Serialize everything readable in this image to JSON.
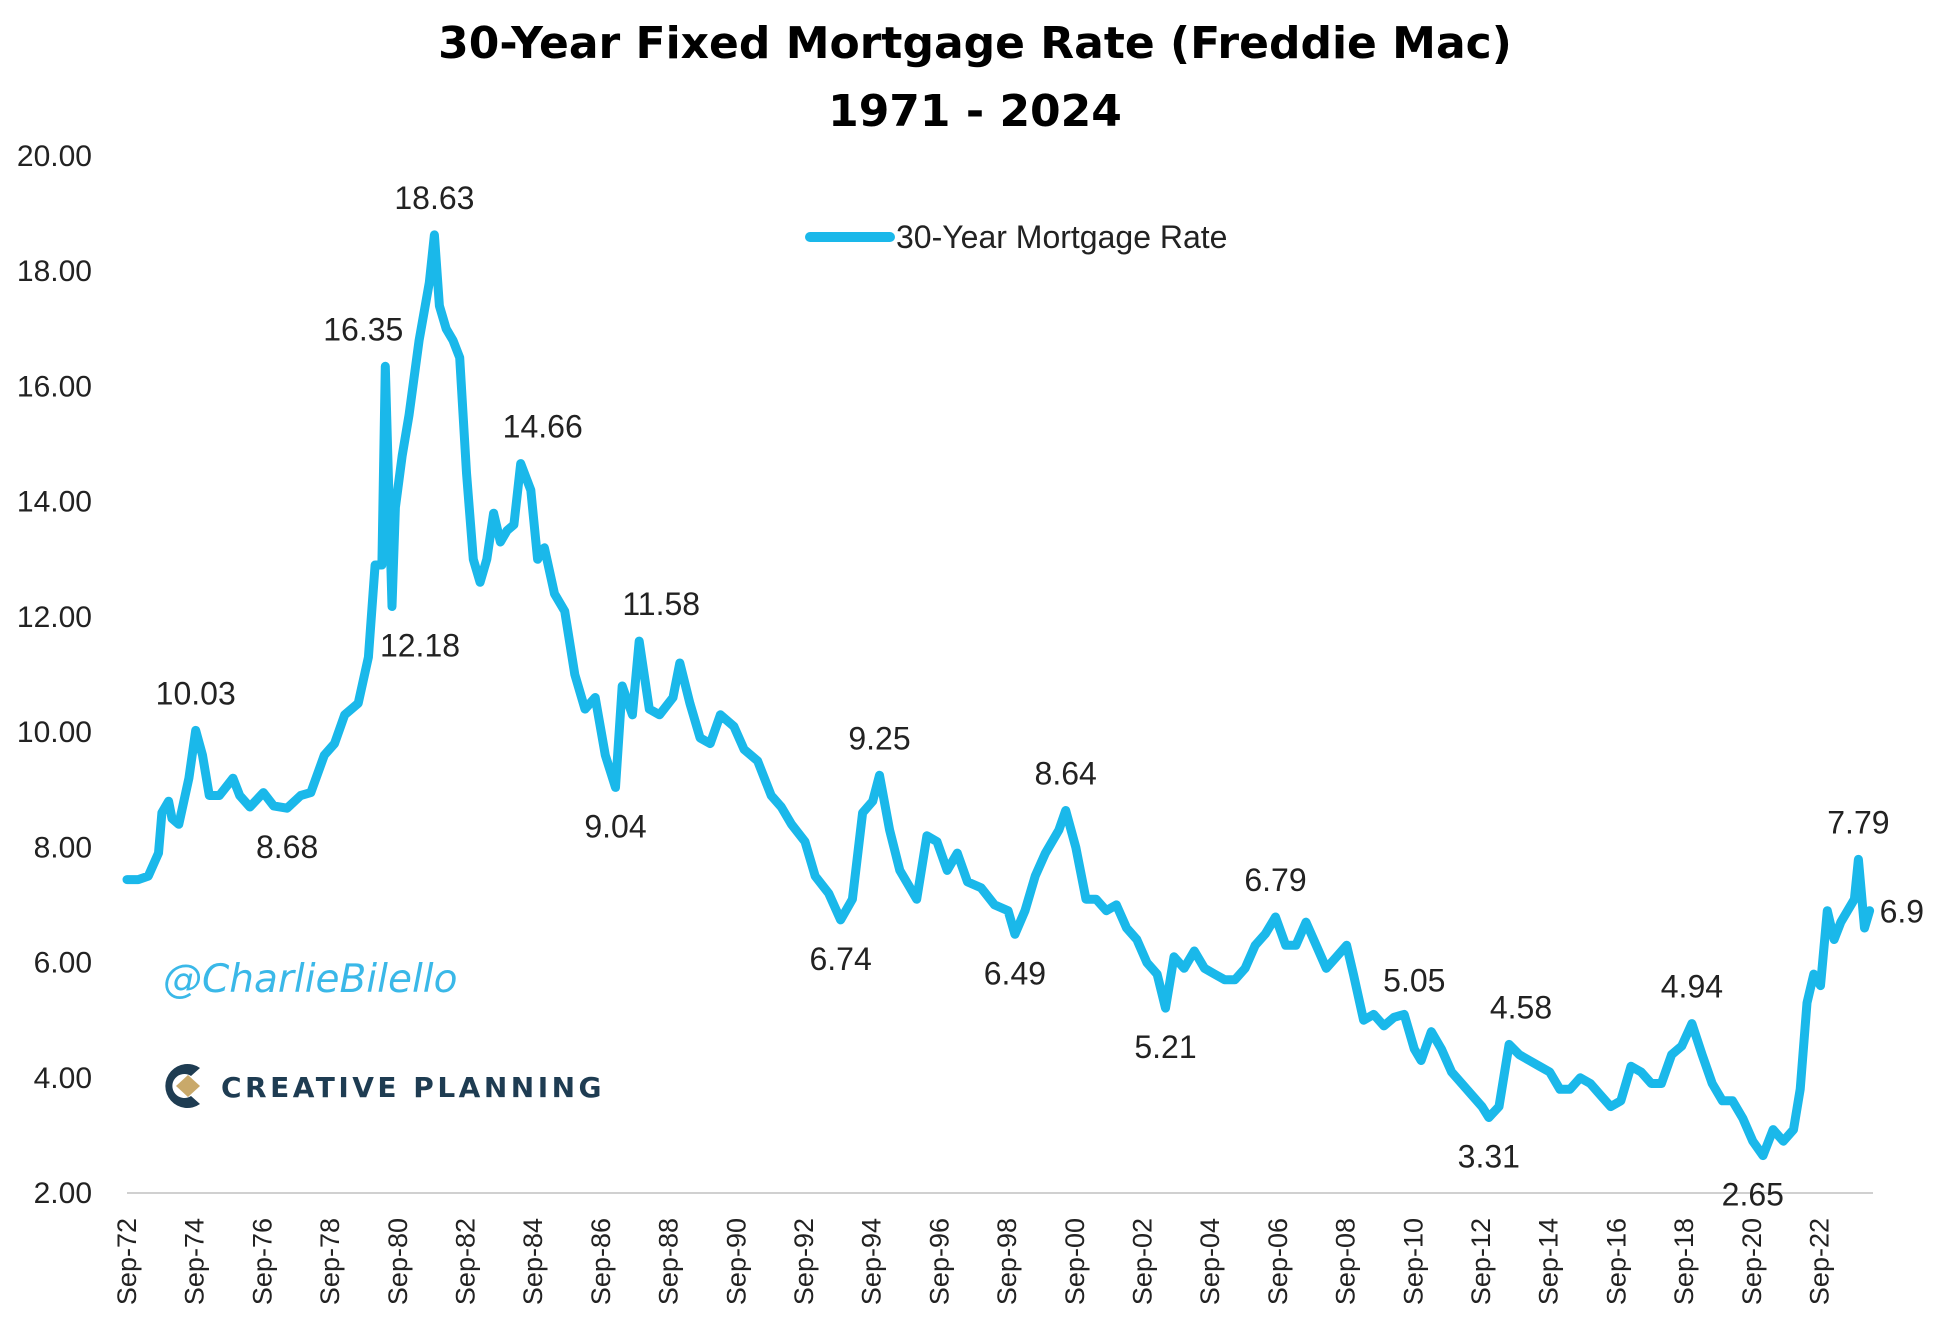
{
  "brand": {
    "watermark": "@CharlieBilello",
    "logo_text": "CREATIVE PLANNING",
    "logo_color": "#1e3c52",
    "logo_accent": "#c9a96a"
  },
  "chart_data": {
    "type": "line",
    "title": "30-Year Fixed  Mortgage Rate (Freddie Mac)",
    "subtitle": "1971 - 2024",
    "legend": {
      "label": "30-Year Mortgage Rate",
      "placement": "top-center"
    },
    "line_color": "#1ab8ea",
    "grid": false,
    "ylim": [
      2,
      20
    ],
    "yticks": [
      "2.00",
      "4.00",
      "6.00",
      "8.00",
      "10.00",
      "12.00",
      "14.00",
      "16.00",
      "18.00",
      "20.00"
    ],
    "xlim": [
      1972.67,
      2024.25
    ],
    "xticks": [
      "Sep-72",
      "Sep-74",
      "Sep-76",
      "Sep-78",
      "Sep-80",
      "Sep-82",
      "Sep-84",
      "Sep-86",
      "Sep-88",
      "Sep-90",
      "Sep-92",
      "Sep-94",
      "Sep-96",
      "Sep-98",
      "Sep-00",
      "Sep-02",
      "Sep-04",
      "Sep-06",
      "Sep-08",
      "Sep-10",
      "Sep-12",
      "Sep-14",
      "Sep-16",
      "Sep-18",
      "Sep-20",
      "Sep-22"
    ],
    "series": [
      {
        "name": "30-Year Mortgage Rate",
        "x": [
          1972.67,
          1973.0,
          1973.3,
          1973.6,
          1973.7,
          1973.9,
          1974.0,
          1974.2,
          1974.5,
          1974.7,
          1974.9,
          1975.1,
          1975.4,
          1975.8,
          1976.0,
          1976.3,
          1976.7,
          1977.0,
          1977.4,
          1977.8,
          1978.1,
          1978.5,
          1978.8,
          1979.1,
          1979.5,
          1979.8,
          1980.0,
          1980.2,
          1980.3,
          1980.5,
          1980.6,
          1980.8,
          1981.0,
          1981.3,
          1981.6,
          1981.75,
          1981.9,
          1982.1,
          1982.3,
          1982.5,
          1982.7,
          1982.9,
          1983.1,
          1983.3,
          1983.5,
          1983.7,
          1983.9,
          1984.1,
          1984.3,
          1984.6,
          1984.8,
          1985.0,
          1985.3,
          1985.6,
          1985.9,
          1986.2,
          1986.5,
          1986.8,
          1987.1,
          1987.3,
          1987.6,
          1987.8,
          1988.1,
          1988.4,
          1988.8,
          1989.0,
          1989.3,
          1989.6,
          1989.9,
          1990.2,
          1990.6,
          1990.9,
          1991.3,
          1991.7,
          1992.0,
          1992.3,
          1992.7,
          1993.0,
          1993.4,
          1993.75,
          1994.1,
          1994.4,
          1994.7,
          1994.9,
          1995.2,
          1995.5,
          1995.8,
          1996.0,
          1996.3,
          1996.6,
          1996.9,
          1997.2,
          1997.5,
          1997.9,
          1998.3,
          1998.7,
          1998.9,
          1999.2,
          1999.5,
          1999.8,
          2000.2,
          2000.4,
          2000.7,
          2001.0,
          2001.3,
          2001.6,
          2001.9,
          2002.2,
          2002.5,
          2002.8,
          2003.1,
          2003.35,
          2003.6,
          2003.9,
          2004.2,
          2004.5,
          2004.8,
          2005.1,
          2005.4,
          2005.7,
          2006.0,
          2006.3,
          2006.6,
          2006.9,
          2007.2,
          2007.5,
          2007.8,
          2008.1,
          2008.4,
          2008.7,
          2008.9,
          2009.2,
          2009.5,
          2009.8,
          2010.1,
          2010.4,
          2010.7,
          2010.9,
          2011.2,
          2011.5,
          2011.8,
          2012.1,
          2012.4,
          2012.7,
          2012.9,
          2013.2,
          2013.5,
          2013.8,
          2014.1,
          2014.4,
          2014.7,
          2015.0,
          2015.3,
          2015.6,
          2015.9,
          2016.2,
          2016.5,
          2016.8,
          2017.1,
          2017.4,
          2017.7,
          2018.0,
          2018.3,
          2018.6,
          2018.9,
          2019.2,
          2019.5,
          2019.8,
          2020.1,
          2020.4,
          2020.7,
          2021.0,
          2021.3,
          2021.6,
          2021.9,
          2022.1,
          2022.3,
          2022.5,
          2022.7,
          2022.9,
          2023.1,
          2023.3,
          2023.5,
          2023.7,
          2023.82,
          2024.0,
          2024.15
        ],
        "y": [
          7.44,
          7.44,
          7.5,
          7.9,
          8.6,
          8.8,
          8.5,
          8.4,
          9.2,
          10.03,
          9.6,
          8.9,
          8.9,
          9.2,
          8.9,
          8.7,
          8.95,
          8.72,
          8.68,
          8.9,
          8.95,
          9.6,
          9.8,
          10.3,
          10.5,
          11.3,
          12.9,
          12.9,
          16.35,
          12.18,
          13.9,
          14.8,
          15.5,
          16.8,
          17.8,
          18.63,
          17.4,
          17.0,
          16.8,
          16.5,
          14.5,
          13.0,
          12.6,
          13.0,
          13.8,
          13.3,
          13.5,
          13.6,
          14.66,
          14.2,
          13.0,
          13.2,
          12.4,
          12.1,
          11.0,
          10.4,
          10.6,
          9.6,
          9.04,
          10.8,
          10.3,
          11.58,
          10.4,
          10.3,
          10.6,
          11.2,
          10.5,
          9.9,
          9.8,
          10.3,
          10.1,
          9.7,
          9.5,
          8.9,
          8.7,
          8.4,
          8.1,
          7.5,
          7.2,
          6.74,
          7.1,
          8.6,
          8.8,
          9.25,
          8.3,
          7.6,
          7.3,
          7.1,
          8.2,
          8.1,
          7.6,
          7.9,
          7.4,
          7.3,
          7.0,
          6.9,
          6.49,
          6.9,
          7.5,
          7.9,
          8.3,
          8.64,
          8.0,
          7.1,
          7.1,
          6.9,
          7.0,
          6.6,
          6.4,
          6.0,
          5.8,
          5.21,
          6.1,
          5.9,
          6.2,
          5.9,
          5.8,
          5.7,
          5.7,
          5.9,
          6.3,
          6.5,
          6.79,
          6.3,
          6.3,
          6.7,
          6.3,
          5.9,
          6.1,
          6.3,
          5.8,
          5.0,
          5.1,
          4.9,
          5.05,
          5.1,
          4.5,
          4.3,
          4.8,
          4.5,
          4.1,
          3.9,
          3.7,
          3.5,
          3.31,
          3.5,
          4.58,
          4.4,
          4.3,
          4.2,
          4.1,
          3.8,
          3.8,
          4.0,
          3.9,
          3.7,
          3.5,
          3.6,
          4.2,
          4.1,
          3.9,
          3.9,
          4.4,
          4.55,
          4.94,
          4.4,
          3.9,
          3.6,
          3.6,
          3.3,
          2.9,
          2.65,
          3.1,
          2.9,
          3.1,
          3.8,
          5.3,
          5.8,
          5.6,
          6.9,
          6.4,
          6.7,
          6.9,
          7.1,
          7.79,
          6.6,
          6.9
        ]
      }
    ],
    "annotations": [
      {
        "x": 1974.7,
        "y": 10.03,
        "text": "10.03",
        "position": "above"
      },
      {
        "x": 1977.4,
        "y": 8.68,
        "text": "8.68",
        "position": "below"
      },
      {
        "x": 1980.3,
        "y": 16.35,
        "text": "16.35",
        "position": "above-left"
      },
      {
        "x": 1980.5,
        "y": 12.18,
        "text": "12.18",
        "position": "below-right"
      },
      {
        "x": 1981.75,
        "y": 18.63,
        "text": "18.63",
        "position": "above"
      },
      {
        "x": 1984.3,
        "y": 14.66,
        "text": "14.66",
        "position": "above-right"
      },
      {
        "x": 1987.1,
        "y": 9.04,
        "text": "9.04",
        "position": "below"
      },
      {
        "x": 1987.8,
        "y": 11.58,
        "text": "11.58",
        "position": "above-right"
      },
      {
        "x": 1993.75,
        "y": 6.74,
        "text": "6.74",
        "position": "below"
      },
      {
        "x": 1994.9,
        "y": 9.25,
        "text": "9.25",
        "position": "above"
      },
      {
        "x": 1998.9,
        "y": 6.49,
        "text": "6.49",
        "position": "below"
      },
      {
        "x": 2000.4,
        "y": 8.64,
        "text": "8.64",
        "position": "above"
      },
      {
        "x": 2003.35,
        "y": 5.21,
        "text": "5.21",
        "position": "below"
      },
      {
        "x": 2006.6,
        "y": 6.79,
        "text": "6.79",
        "position": "above"
      },
      {
        "x": 2010.7,
        "y": 5.05,
        "text": "5.05",
        "position": "above"
      },
      {
        "x": 2012.9,
        "y": 3.31,
        "text": "3.31",
        "position": "below"
      },
      {
        "x": 2013.2,
        "y": 4.58,
        "text": "4.58",
        "position": "above-right"
      },
      {
        "x": 2018.9,
        "y": 4.94,
        "text": "4.94",
        "position": "above"
      },
      {
        "x": 2020.7,
        "y": 2.65,
        "text": "2.65",
        "position": "below"
      },
      {
        "x": 2023.82,
        "y": 7.79,
        "text": "7.79",
        "position": "above"
      },
      {
        "x": 2024.15,
        "y": 6.9,
        "text": "6.9",
        "position": "right"
      }
    ]
  }
}
